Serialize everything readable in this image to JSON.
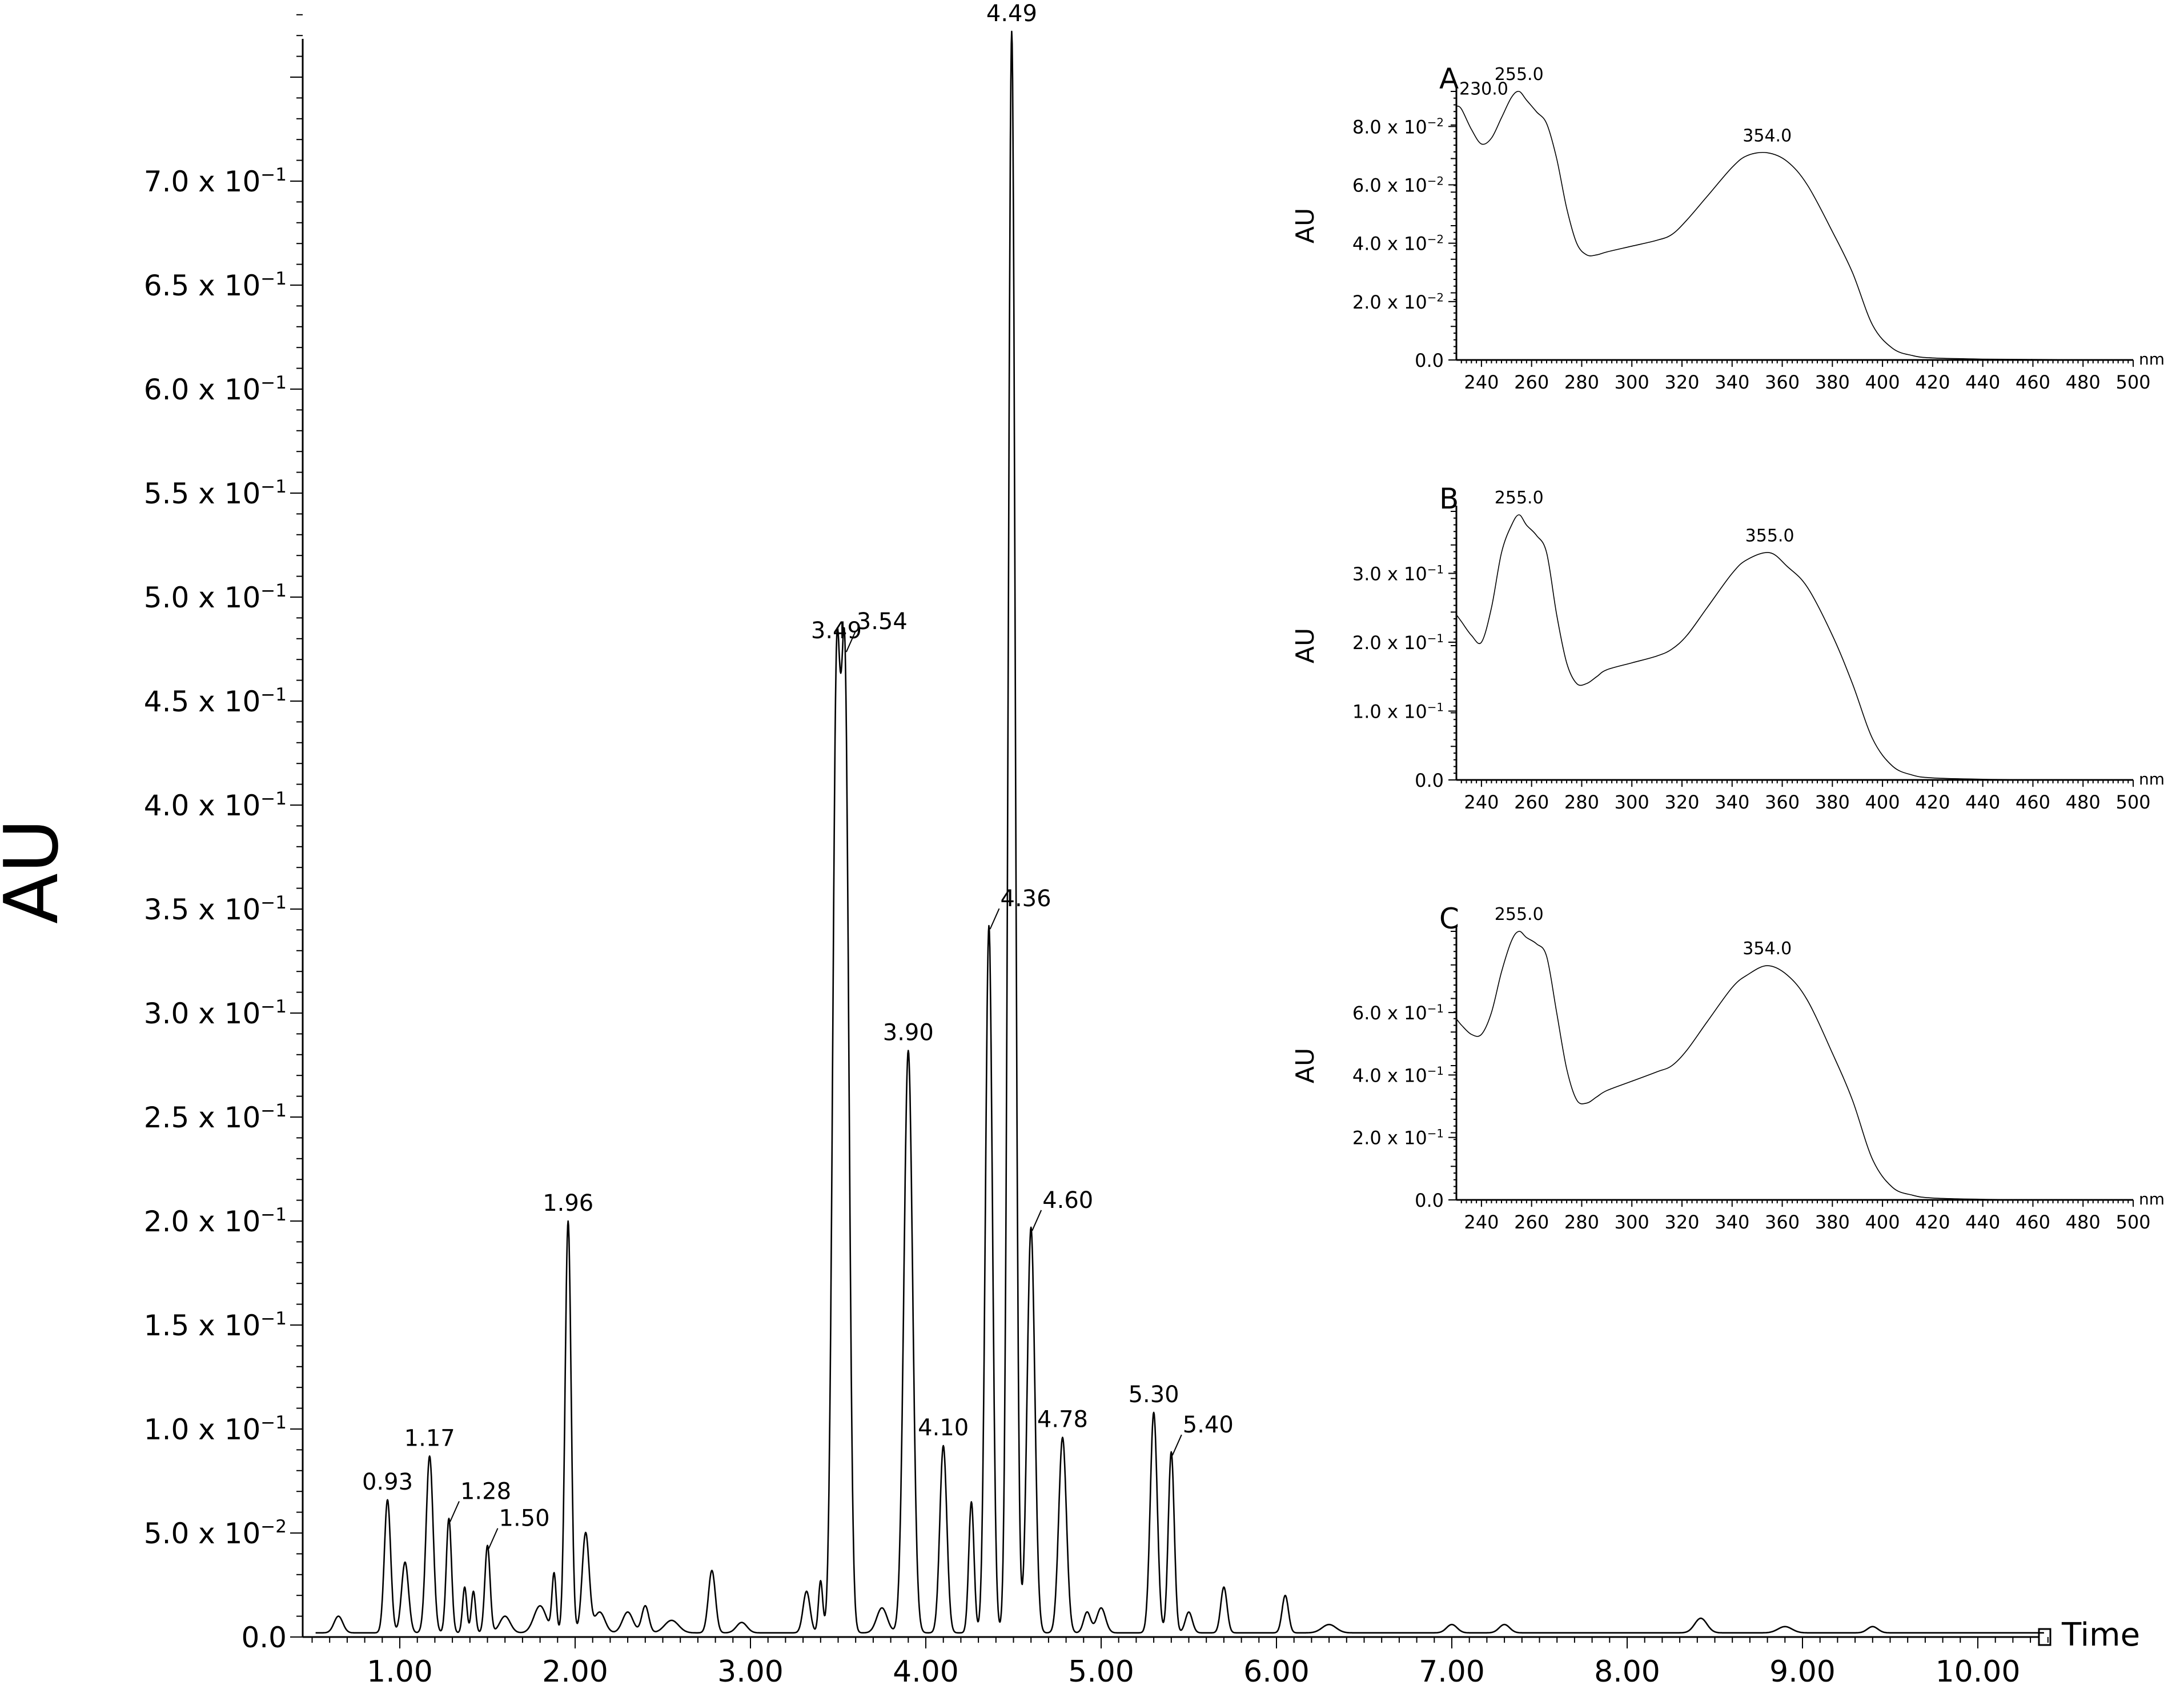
{
  "chart_data": [
    {
      "type": "line",
      "ylabel": "AU",
      "xlabel": "Time",
      "xlim": [
        0.45,
        10.45
      ],
      "ylim": [
        0,
        0.78
      ],
      "xticks": [
        "1.00",
        "2.00",
        "3.00",
        "4.00",
        "5.00",
        "6.00",
        "7.00",
        "8.00",
        "9.00",
        "10.00"
      ],
      "xtick_values": [
        1,
        2,
        3,
        4,
        5,
        6,
        7,
        8,
        9,
        10
      ],
      "yticks": [
        {
          "value": 0.0,
          "label": "0.0"
        },
        {
          "value": 0.05,
          "label": "5.0 x 10",
          "exp": "−2"
        },
        {
          "value": 0.1,
          "label": "1.0 x 10",
          "exp": "−1"
        },
        {
          "value": 0.15,
          "label": "1.5 x 10",
          "exp": "−1"
        },
        {
          "value": 0.2,
          "label": "2.0 x 10",
          "exp": "−1"
        },
        {
          "value": 0.25,
          "label": "2.5 x 10",
          "exp": "−1"
        },
        {
          "value": 0.3,
          "label": "3.0 x 10",
          "exp": "−1"
        },
        {
          "value": 0.35,
          "label": "3.5 x 10",
          "exp": "−1"
        },
        {
          "value": 0.4,
          "label": "4.0 x 10",
          "exp": "−1"
        },
        {
          "value": 0.45,
          "label": "4.5 x 10",
          "exp": "−1"
        },
        {
          "value": 0.5,
          "label": "5.0 x 10",
          "exp": "−1"
        },
        {
          "value": 0.55,
          "label": "5.5 x 10",
          "exp": "−1"
        },
        {
          "value": 0.6,
          "label": "6.0 x 10",
          "exp": "−1"
        },
        {
          "value": 0.65,
          "label": "6.5 x 10",
          "exp": "−1"
        },
        {
          "value": 0.7,
          "label": "7.0 x 10",
          "exp": "−1"
        }
      ],
      "baseline": 0.002,
      "peaks": [
        {
          "rt": 0.65,
          "h": 0.008,
          "w": 0.025
        },
        {
          "rt": 0.93,
          "h": 0.064,
          "w": 0.018,
          "label": "0.93"
        },
        {
          "rt": 1.03,
          "h": 0.034,
          "w": 0.02
        },
        {
          "rt": 1.17,
          "h": 0.085,
          "w": 0.02,
          "label": "1.17"
        },
        {
          "rt": 1.28,
          "h": 0.055,
          "w": 0.015,
          "label": "1.28"
        },
        {
          "rt": 1.37,
          "h": 0.022,
          "w": 0.012
        },
        {
          "rt": 1.42,
          "h": 0.02,
          "w": 0.012
        },
        {
          "rt": 1.5,
          "h": 0.042,
          "w": 0.015,
          "label": "1.50"
        },
        {
          "rt": 1.6,
          "h": 0.008,
          "w": 0.03
        },
        {
          "rt": 1.8,
          "h": 0.013,
          "w": 0.035
        },
        {
          "rt": 1.88,
          "h": 0.028,
          "w": 0.012
        },
        {
          "rt": 1.96,
          "h": 0.198,
          "w": 0.017,
          "label": "1.96"
        },
        {
          "rt": 2.06,
          "h": 0.048,
          "w": 0.02
        },
        {
          "rt": 2.14,
          "h": 0.01,
          "w": 0.03
        },
        {
          "rt": 2.3,
          "h": 0.01,
          "w": 0.03
        },
        {
          "rt": 2.4,
          "h": 0.013,
          "w": 0.02
        },
        {
          "rt": 2.55,
          "h": 0.006,
          "w": 0.04
        },
        {
          "rt": 2.78,
          "h": 0.03,
          "w": 0.02
        },
        {
          "rt": 2.95,
          "h": 0.005,
          "w": 0.03
        },
        {
          "rt": 3.32,
          "h": 0.02,
          "w": 0.02
        },
        {
          "rt": 3.4,
          "h": 0.025,
          "w": 0.012
        },
        {
          "rt": 3.49,
          "h": 0.44,
          "w": 0.022,
          "label": "3.49"
        },
        {
          "rt": 3.54,
          "h": 0.44,
          "w": 0.022,
          "label": "3.54"
        },
        {
          "rt": 3.75,
          "h": 0.012,
          "w": 0.03
        },
        {
          "rt": 3.9,
          "h": 0.28,
          "w": 0.025,
          "label": "3.90"
        },
        {
          "rt": 4.1,
          "h": 0.09,
          "w": 0.02,
          "label": "4.10"
        },
        {
          "rt": 4.26,
          "h": 0.063,
          "w": 0.015
        },
        {
          "rt": 4.36,
          "h": 0.34,
          "w": 0.02,
          "label": "4.36"
        },
        {
          "rt": 4.49,
          "h": 0.77,
          "w": 0.02,
          "label": "4.49"
        },
        {
          "rt": 4.6,
          "h": 0.195,
          "w": 0.022,
          "label": "4.60"
        },
        {
          "rt": 4.78,
          "h": 0.094,
          "w": 0.022,
          "label": "4.78"
        },
        {
          "rt": 4.92,
          "h": 0.01,
          "w": 0.02
        },
        {
          "rt": 5.0,
          "h": 0.012,
          "w": 0.025
        },
        {
          "rt": 5.3,
          "h": 0.106,
          "w": 0.02,
          "label": "5.30"
        },
        {
          "rt": 5.4,
          "h": 0.087,
          "w": 0.017,
          "label": "5.40"
        },
        {
          "rt": 5.5,
          "h": 0.01,
          "w": 0.02
        },
        {
          "rt": 5.7,
          "h": 0.022,
          "w": 0.018
        },
        {
          "rt": 6.05,
          "h": 0.018,
          "w": 0.018
        },
        {
          "rt": 6.3,
          "h": 0.004,
          "w": 0.04
        },
        {
          "rt": 7.0,
          "h": 0.004,
          "w": 0.03
        },
        {
          "rt": 7.3,
          "h": 0.004,
          "w": 0.03
        },
        {
          "rt": 8.42,
          "h": 0.007,
          "w": 0.035
        },
        {
          "rt": 8.9,
          "h": 0.003,
          "w": 0.04
        },
        {
          "rt": 9.4,
          "h": 0.003,
          "w": 0.03
        }
      ],
      "labels": [
        {
          "text": "0.93",
          "rt": 0.93
        },
        {
          "text": "1.17",
          "rt": 1.17
        },
        {
          "text": "1.28",
          "rt": 1.28,
          "leader": true
        },
        {
          "text": "1.50",
          "rt": 1.5,
          "leader": true
        },
        {
          "text": "1.96",
          "rt": 1.96
        },
        {
          "text": "3.49",
          "rt": 3.49
        },
        {
          "text": "3.54",
          "rt": 3.54,
          "leader": true
        },
        {
          "text": "3.90",
          "rt": 3.9
        },
        {
          "text": "4.10",
          "rt": 4.1
        },
        {
          "text": "4.36",
          "rt": 4.36,
          "leader": true
        },
        {
          "text": "4.49",
          "rt": 4.49
        },
        {
          "text": "4.60",
          "rt": 4.6,
          "leader": true
        },
        {
          "text": "4.78",
          "rt": 4.78
        },
        {
          "text": "5.30",
          "rt": 5.3
        },
        {
          "text": "5.40",
          "rt": 5.4,
          "leader": true
        }
      ]
    },
    {
      "type": "line",
      "panel": "A",
      "ylabel": "AU",
      "xlabel": "nm",
      "xlim": [
        230,
        500
      ],
      "ylim": [
        0,
        0.092
      ],
      "xticks": [
        "240",
        "260",
        "280",
        "300",
        "320",
        "340",
        "360",
        "380",
        "400",
        "420",
        "440",
        "460",
        "480",
        "500"
      ],
      "yticks": [
        {
          "value": 0.0,
          "label": "0.0"
        },
        {
          "value": 0.02,
          "label": "2.0 x 10",
          "exp": "−2"
        },
        {
          "value": 0.04,
          "label": "4.0 x 10",
          "exp": "−2"
        },
        {
          "value": 0.06,
          "label": "6.0 x 10",
          "exp": "−2"
        },
        {
          "value": 0.08,
          "label": "8.0 x 10",
          "exp": "−2"
        }
      ],
      "x": [
        230,
        232,
        236,
        240,
        244,
        248,
        252,
        255,
        258,
        262,
        266,
        270,
        274,
        278,
        282,
        286,
        290,
        300,
        310,
        316,
        322,
        330,
        340,
        346,
        354,
        362,
        370,
        380,
        388,
        396,
        404,
        412,
        420,
        440,
        460,
        480,
        500
      ],
      "y": [
        0.087,
        0.086,
        0.079,
        0.074,
        0.076,
        0.083,
        0.09,
        0.092,
        0.089,
        0.085,
        0.081,
        0.069,
        0.052,
        0.04,
        0.036,
        0.036,
        0.037,
        0.039,
        0.041,
        0.043,
        0.048,
        0.056,
        0.066,
        0.07,
        0.071,
        0.068,
        0.06,
        0.044,
        0.03,
        0.012,
        0.004,
        0.0015,
        0.0007,
        0.0003,
        0.0002,
        0.0001,
        0.0001
      ],
      "peak_labels": [
        {
          "text": "230.0",
          "x": 230
        },
        {
          "text": "255.0",
          "x": 255
        },
        {
          "text": "354.0",
          "x": 354
        }
      ]
    },
    {
      "type": "line",
      "panel": "B",
      "ylabel": "AU",
      "xlabel": "nm",
      "xlim": [
        230,
        500
      ],
      "ylim": [
        0,
        0.39
      ],
      "xticks": [
        "240",
        "260",
        "280",
        "300",
        "320",
        "340",
        "360",
        "380",
        "400",
        "420",
        "440",
        "460",
        "480",
        "500"
      ],
      "yticks": [
        {
          "value": 0.0,
          "label": "0.0"
        },
        {
          "value": 0.1,
          "label": "1.0 x 10",
          "exp": "−1"
        },
        {
          "value": 0.2,
          "label": "2.0 x 10",
          "exp": "−1"
        },
        {
          "value": 0.3,
          "label": "3.0 x 10",
          "exp": "−1"
        }
      ],
      "x": [
        230,
        232,
        236,
        240,
        244,
        248,
        252,
        255,
        258,
        262,
        266,
        270,
        274,
        278,
        282,
        286,
        290,
        300,
        310,
        316,
        322,
        330,
        340,
        346,
        355,
        362,
        370,
        380,
        388,
        396,
        404,
        412,
        420,
        440,
        460,
        480,
        500
      ],
      "y": [
        0.24,
        0.23,
        0.21,
        0.2,
        0.25,
        0.33,
        0.37,
        0.385,
        0.37,
        0.355,
        0.33,
        0.24,
        0.17,
        0.14,
        0.14,
        0.15,
        0.16,
        0.17,
        0.18,
        0.19,
        0.21,
        0.25,
        0.3,
        0.32,
        0.33,
        0.31,
        0.28,
        0.21,
        0.14,
        0.06,
        0.02,
        0.007,
        0.003,
        0.001,
        0.0005,
        0.0003,
        0.0002
      ],
      "peak_labels": [
        {
          "text": "255.0",
          "x": 255
        },
        {
          "text": "355.0",
          "x": 355
        }
      ]
    },
    {
      "type": "line",
      "panel": "C",
      "ylabel": "AU",
      "xlabel": "nm",
      "xlim": [
        230,
        500
      ],
      "ylim": [
        0,
        0.86
      ],
      "xticks": [
        "240",
        "260",
        "280",
        "300",
        "320",
        "340",
        "360",
        "380",
        "400",
        "420",
        "440",
        "460",
        "480",
        "500"
      ],
      "yticks": [
        {
          "value": 0.0,
          "label": "0.0"
        },
        {
          "value": 0.2,
          "label": "2.0 x 10",
          "exp": "−1"
        },
        {
          "value": 0.4,
          "label": "4.0 x 10",
          "exp": "−1"
        },
        {
          "value": 0.6,
          "label": "6.0 x 10",
          "exp": "−1"
        }
      ],
      "x": [
        230,
        232,
        236,
        240,
        244,
        248,
        252,
        255,
        258,
        262,
        266,
        270,
        274,
        278,
        282,
        286,
        290,
        300,
        310,
        316,
        322,
        330,
        340,
        346,
        354,
        362,
        370,
        380,
        388,
        396,
        404,
        412,
        420,
        440,
        460,
        480,
        500
      ],
      "y": [
        0.58,
        0.56,
        0.53,
        0.53,
        0.6,
        0.73,
        0.83,
        0.86,
        0.84,
        0.82,
        0.78,
        0.6,
        0.42,
        0.32,
        0.31,
        0.33,
        0.35,
        0.38,
        0.41,
        0.43,
        0.48,
        0.57,
        0.68,
        0.72,
        0.75,
        0.72,
        0.64,
        0.47,
        0.32,
        0.13,
        0.04,
        0.015,
        0.006,
        0.002,
        0.001,
        0.0005,
        0.0003
      ],
      "peak_labels": [
        {
          "text": "255.0",
          "x": 255
        },
        {
          "text": "354.0",
          "x": 354
        }
      ]
    }
  ]
}
